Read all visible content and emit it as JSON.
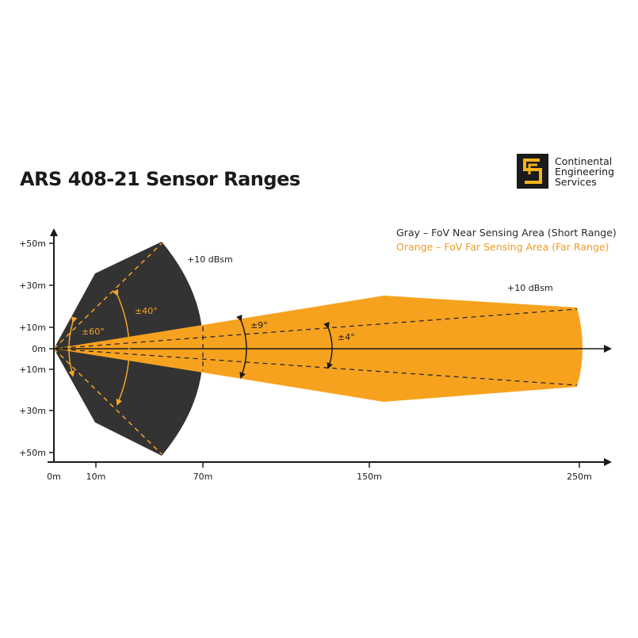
{
  "title": "ARS 408-21 Sensor Ranges",
  "brand": {
    "line1": "Continental",
    "line2": "Engineering",
    "line3": "Services",
    "icon": "continental-logo-icon"
  },
  "legend": {
    "near": "Gray – FoV Near Sensing Area (Short Range)",
    "far": "Orange – FoV Far Sensing Area (Far Range)"
  },
  "colors": {
    "near": "#333333",
    "far": "#f7a21f",
    "axis": "#1a1a1a",
    "angle_on_dark": "#f5a623"
  },
  "y_axis_labels": [
    "+50m",
    "+30m",
    "+10m",
    "0m",
    "+10m",
    "+30m",
    "+50m"
  ],
  "x_axis_labels": [
    "0m",
    "10m",
    "70m",
    "150m",
    "250m"
  ],
  "annotations": {
    "near_rcs": "+10 dBsm",
    "far_rcs": "+10 dBsm",
    "angle_60": "±60°",
    "angle_40": "±40°",
    "angle_9": "±9°",
    "angle_4": "±4°"
  }
}
